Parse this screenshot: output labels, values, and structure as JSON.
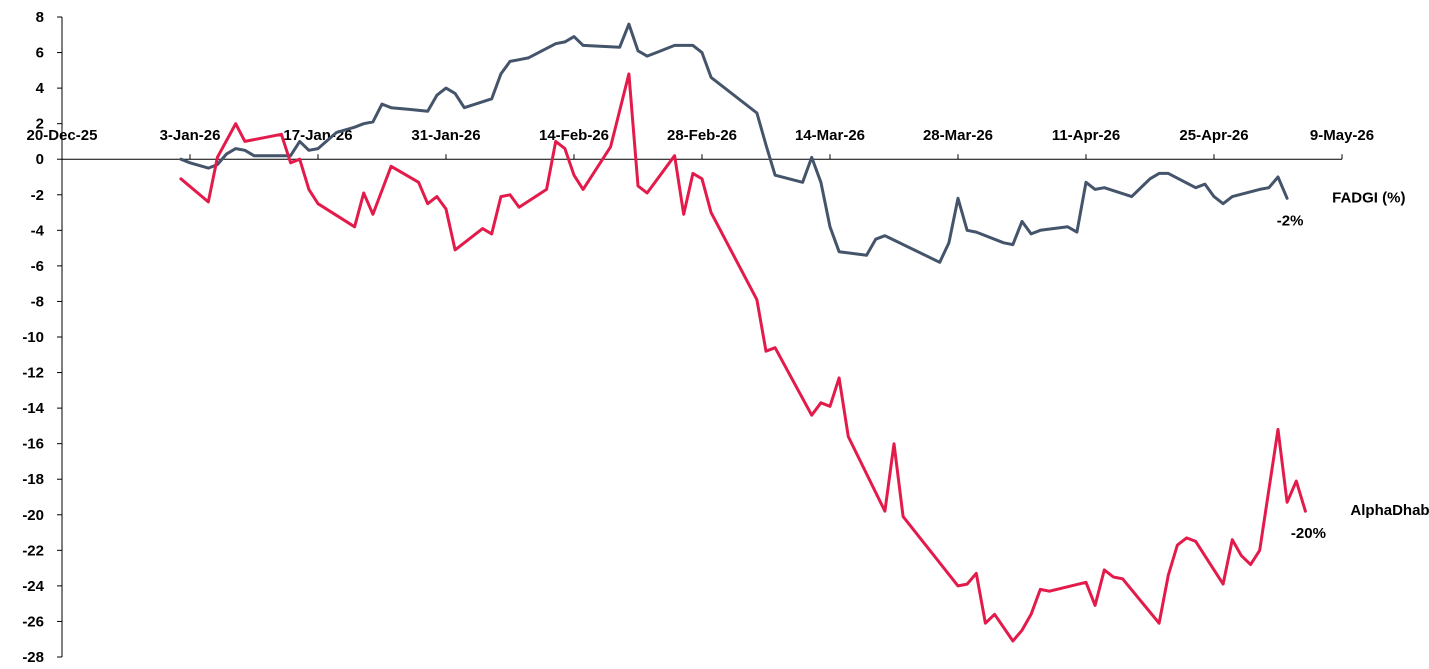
{
  "chart_data": {
    "type": "line",
    "title": "",
    "xlabel": "",
    "ylabel": "",
    "ylim": [
      -28,
      8
    ],
    "y_ticks": [
      "8",
      "6",
      "4",
      "2",
      "0",
      "-2",
      "-4",
      "-6",
      "-8",
      "-10",
      "-12",
      "-14",
      "-16",
      "-18",
      "-20",
      "-22",
      "-24",
      "-26",
      "-28"
    ],
    "xlim": [
      "2025-12-20",
      "2026-05-09"
    ],
    "x_tick_labels": [
      "20-Dec-25",
      "3-Jan-26",
      "17-Jan-26",
      "31-Jan-26",
      "14-Feb-26",
      "28-Feb-26",
      "14-Mar-26",
      "28-Mar-26",
      "11-Apr-26",
      "25-Apr-26",
      "9-May-26"
    ],
    "grid": false,
    "legend": "none",
    "series": [
      {
        "name": "FADGI (%)",
        "end_label": "-2%",
        "color": "#44546A",
        "points": [
          [
            "2026-01-02",
            0.0
          ],
          [
            "2026-01-03",
            -0.2
          ],
          [
            "2026-01-05",
            -0.5
          ],
          [
            "2026-01-06",
            -0.3
          ],
          [
            "2026-01-07",
            0.3
          ],
          [
            "2026-01-08",
            0.6
          ],
          [
            "2026-01-09",
            0.5
          ],
          [
            "2026-01-10",
            0.2
          ],
          [
            "2026-01-12",
            0.2
          ],
          [
            "2026-01-14",
            0.2
          ],
          [
            "2026-01-15",
            1.0
          ],
          [
            "2026-01-16",
            0.5
          ],
          [
            "2026-01-17",
            0.6
          ],
          [
            "2026-01-19",
            1.5
          ],
          [
            "2026-01-21",
            1.8
          ],
          [
            "2026-01-22",
            2.0
          ],
          [
            "2026-01-23",
            2.1
          ],
          [
            "2026-01-24",
            3.1
          ],
          [
            "2026-01-25",
            2.9
          ],
          [
            "2026-01-27",
            2.8
          ],
          [
            "2026-01-29",
            2.7
          ],
          [
            "2026-01-30",
            3.6
          ],
          [
            "2026-01-31",
            4.0
          ],
          [
            "2026-02-01",
            3.7
          ],
          [
            "2026-02-02",
            2.9
          ],
          [
            "2026-02-05",
            3.4
          ],
          [
            "2026-02-06",
            4.8
          ],
          [
            "2026-02-07",
            5.5
          ],
          [
            "2026-02-08",
            5.6
          ],
          [
            "2026-02-09",
            5.7
          ],
          [
            "2026-02-12",
            6.5
          ],
          [
            "2026-02-13",
            6.6
          ],
          [
            "2026-02-14",
            6.9
          ],
          [
            "2026-02-15",
            6.4
          ],
          [
            "2026-02-19",
            6.3
          ],
          [
            "2026-02-20",
            7.6
          ],
          [
            "2026-02-21",
            6.1
          ],
          [
            "2026-02-22",
            5.8
          ],
          [
            "2026-02-23",
            6.0
          ],
          [
            "2026-02-25",
            6.4
          ],
          [
            "2026-02-27",
            6.4
          ],
          [
            "2026-02-28",
            6.0
          ],
          [
            "2026-03-01",
            4.6
          ],
          [
            "2026-03-06",
            2.6
          ],
          [
            "2026-03-07",
            0.8
          ],
          [
            "2026-03-08",
            -0.9
          ],
          [
            "2026-03-11",
            -1.3
          ],
          [
            "2026-03-12",
            0.1
          ],
          [
            "2026-03-13",
            -1.3
          ],
          [
            "2026-03-14",
            -3.8
          ],
          [
            "2026-03-15",
            -5.2
          ],
          [
            "2026-03-18",
            -5.4
          ],
          [
            "2026-03-19",
            -4.5
          ],
          [
            "2026-03-20",
            -4.3
          ],
          [
            "2026-03-26",
            -5.8
          ],
          [
            "2026-03-27",
            -4.7
          ],
          [
            "2026-03-28",
            -2.2
          ],
          [
            "2026-03-29",
            -4.0
          ],
          [
            "2026-03-30",
            -4.1
          ],
          [
            "2026-04-02",
            -4.7
          ],
          [
            "2026-04-03",
            -4.8
          ],
          [
            "2026-04-04",
            -3.5
          ],
          [
            "2026-04-05",
            -4.2
          ],
          [
            "2026-04-06",
            -4.0
          ],
          [
            "2026-04-09",
            -3.8
          ],
          [
            "2026-04-10",
            -4.1
          ],
          [
            "2026-04-11",
            -1.3
          ],
          [
            "2026-04-12",
            -1.7
          ],
          [
            "2026-04-13",
            -1.6
          ],
          [
            "2026-04-16",
            -2.1
          ],
          [
            "2026-04-18",
            -1.1
          ],
          [
            "2026-04-19",
            -0.8
          ],
          [
            "2026-04-20",
            -0.8
          ],
          [
            "2026-04-23",
            -1.6
          ],
          [
            "2026-04-24",
            -1.4
          ],
          [
            "2026-04-25",
            -2.1
          ],
          [
            "2026-04-26",
            -2.5
          ],
          [
            "2026-04-27",
            -2.1
          ],
          [
            "2026-04-30",
            -1.7
          ],
          [
            "2026-05-01",
            -1.6
          ],
          [
            "2026-05-02",
            -1.0
          ],
          [
            "2026-05-03",
            -2.2
          ]
        ]
      },
      {
        "name": "AlphaDhabi (%)",
        "end_label": "-20%",
        "color": "#E31B4B",
        "points": [
          [
            "2026-01-02",
            -1.1
          ],
          [
            "2026-01-05",
            -2.4
          ],
          [
            "2026-01-06",
            0.1
          ],
          [
            "2026-01-08",
            2.0
          ],
          [
            "2026-01-09",
            1.0
          ],
          [
            "2026-01-13",
            1.4
          ],
          [
            "2026-01-14",
            -0.2
          ],
          [
            "2026-01-15",
            0.0
          ],
          [
            "2026-01-16",
            -1.7
          ],
          [
            "2026-01-17",
            -2.5
          ],
          [
            "2026-01-21",
            -3.8
          ],
          [
            "2026-01-22",
            -1.9
          ],
          [
            "2026-01-23",
            -3.1
          ],
          [
            "2026-01-25",
            -0.4
          ],
          [
            "2026-01-28",
            -1.3
          ],
          [
            "2026-01-29",
            -2.5
          ],
          [
            "2026-01-30",
            -2.1
          ],
          [
            "2026-01-31",
            -2.8
          ],
          [
            "2026-02-01",
            -5.1
          ],
          [
            "2026-02-04",
            -3.9
          ],
          [
            "2026-02-05",
            -4.2
          ],
          [
            "2026-02-06",
            -2.1
          ],
          [
            "2026-02-07",
            -2.0
          ],
          [
            "2026-02-08",
            -2.7
          ],
          [
            "2026-02-11",
            -1.7
          ],
          [
            "2026-02-12",
            1.0
          ],
          [
            "2026-02-13",
            0.6
          ],
          [
            "2026-02-14",
            -0.9
          ],
          [
            "2026-02-15",
            -1.7
          ],
          [
            "2026-02-18",
            0.7
          ],
          [
            "2026-02-20",
            4.8
          ],
          [
            "2026-02-21",
            -1.5
          ],
          [
            "2026-02-22",
            -1.9
          ],
          [
            "2026-02-25",
            0.2
          ],
          [
            "2026-02-26",
            -3.1
          ],
          [
            "2026-02-27",
            -0.8
          ],
          [
            "2026-02-28",
            -1.1
          ],
          [
            "2026-03-01",
            -3.0
          ],
          [
            "2026-03-06",
            -7.9
          ],
          [
            "2026-03-07",
            -10.8
          ],
          [
            "2026-03-08",
            -10.6
          ],
          [
            "2026-03-12",
            -14.4
          ],
          [
            "2026-03-13",
            -13.7
          ],
          [
            "2026-03-14",
            -13.9
          ],
          [
            "2026-03-15",
            -12.3
          ],
          [
            "2026-03-16",
            -15.6
          ],
          [
            "2026-03-20",
            -19.8
          ],
          [
            "2026-03-21",
            -16.0
          ],
          [
            "2026-03-22",
            -20.1
          ],
          [
            "2026-03-28",
            -24.0
          ],
          [
            "2026-03-29",
            -23.9
          ],
          [
            "2026-03-30",
            -23.3
          ],
          [
            "2026-03-31",
            -26.1
          ],
          [
            "2026-04-01",
            -25.6
          ],
          [
            "2026-04-03",
            -27.1
          ],
          [
            "2026-04-04",
            -26.5
          ],
          [
            "2026-04-05",
            -25.6
          ],
          [
            "2026-04-06",
            -24.2
          ],
          [
            "2026-04-07",
            -24.3
          ],
          [
            "2026-04-11",
            -23.8
          ],
          [
            "2026-04-12",
            -25.1
          ],
          [
            "2026-04-13",
            -23.1
          ],
          [
            "2026-04-14",
            -23.5
          ],
          [
            "2026-04-15",
            -23.6
          ],
          [
            "2026-04-19",
            -26.1
          ],
          [
            "2026-04-20",
            -23.4
          ],
          [
            "2026-04-21",
            -21.7
          ],
          [
            "2026-04-22",
            -21.3
          ],
          [
            "2026-04-23",
            -21.5
          ],
          [
            "2026-04-26",
            -23.9
          ],
          [
            "2026-04-27",
            -21.4
          ],
          [
            "2026-04-28",
            -22.3
          ],
          [
            "2026-04-29",
            -22.8
          ],
          [
            "2026-04-30",
            -22.0
          ],
          [
            "2026-05-02",
            -15.2
          ],
          [
            "2026-05-03",
            -19.3
          ],
          [
            "2026-05-04",
            -18.1
          ],
          [
            "2026-05-05",
            -19.8
          ]
        ]
      }
    ]
  }
}
